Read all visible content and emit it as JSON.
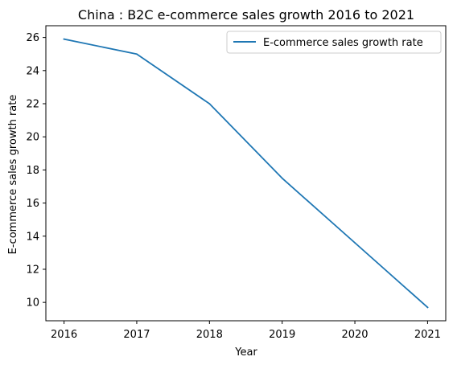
{
  "chart_data": {
    "type": "line",
    "title": "China : B2C e-commerce sales growth 2016 to 2021",
    "xlabel": "Year",
    "ylabel": "E-commerce sales growth rate",
    "x": [
      2016,
      2017,
      2018,
      2019,
      2020,
      2021
    ],
    "series": [
      {
        "name": "E-commerce sales growth rate",
        "values": [
          25.9,
          25.0,
          22.0,
          17.5,
          13.6,
          9.7
        ],
        "color": "#1f77b4"
      }
    ],
    "x_ticks": [
      "2016",
      "2017",
      "2018",
      "2019",
      "2020",
      "2021"
    ],
    "y_ticks": [
      "10",
      "12",
      "14",
      "16",
      "18",
      "20",
      "22",
      "24",
      "26"
    ],
    "xlim": [
      2015.75,
      2021.25
    ],
    "ylim": [
      8.89,
      26.71
    ],
    "grid": false,
    "legend_position": "top-right"
  }
}
